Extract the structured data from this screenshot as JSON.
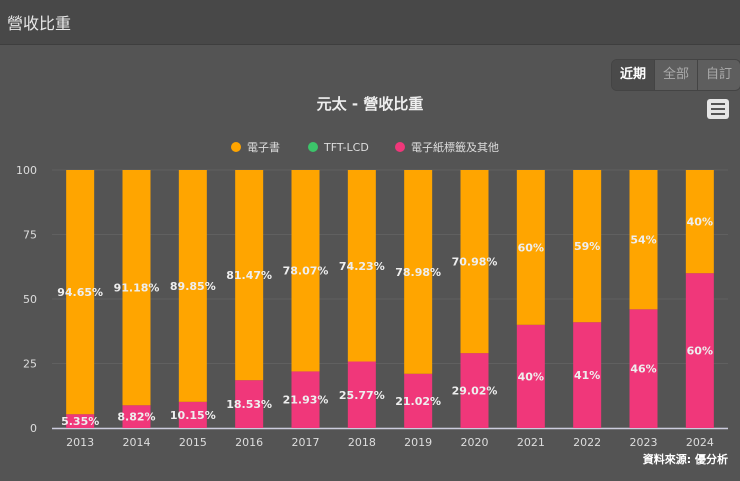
{
  "header": {
    "title": "營收比重"
  },
  "range_buttons": [
    "近期",
    "全部",
    "自訂"
  ],
  "menu_icon": "hamburger-menu-icon",
  "credit": "資料來源: 優分析",
  "chart_data": {
    "type": "bar",
    "stacked": true,
    "title": "元太 - 營收比重",
    "categories": [
      "2013",
      "2014",
      "2015",
      "2016",
      "2017",
      "2018",
      "2019",
      "2020",
      "2021",
      "2022",
      "2023",
      "2024"
    ],
    "ylim": [
      0,
      100
    ],
    "yticks": [
      0,
      25,
      50,
      75,
      100
    ],
    "grid": true,
    "legend_placement": "top",
    "series": [
      {
        "name": "電子書",
        "color": "#ffa500",
        "values": [
          94.65,
          91.18,
          89.85,
          81.47,
          78.07,
          74.23,
          78.98,
          70.98,
          60,
          59,
          54,
          40
        ],
        "labels": [
          "94.65%",
          "91.18%",
          "89.85%",
          "81.47%",
          "78.07%",
          "74.23%",
          "78.98%",
          "70.98%",
          "60%",
          "59%",
          "54%",
          "40%"
        ]
      },
      {
        "name": "TFT-LCD",
        "color": "#3cc46a",
        "values": [
          0,
          0,
          0,
          0,
          0,
          0,
          0,
          0,
          0,
          0,
          0,
          0
        ],
        "labels": []
      },
      {
        "name": "電子紙標籤及其他",
        "color": "#f0377a",
        "values": [
          5.35,
          8.82,
          10.15,
          18.53,
          21.93,
          25.77,
          21.02,
          29.02,
          40,
          41,
          46,
          60
        ],
        "labels": [
          "5.35%",
          "8.82%",
          "10.15%",
          "18.53%",
          "21.93%",
          "25.77%",
          "21.02%",
          "29.02%",
          "40%",
          "41%",
          "46%",
          "60%"
        ]
      }
    ]
  }
}
